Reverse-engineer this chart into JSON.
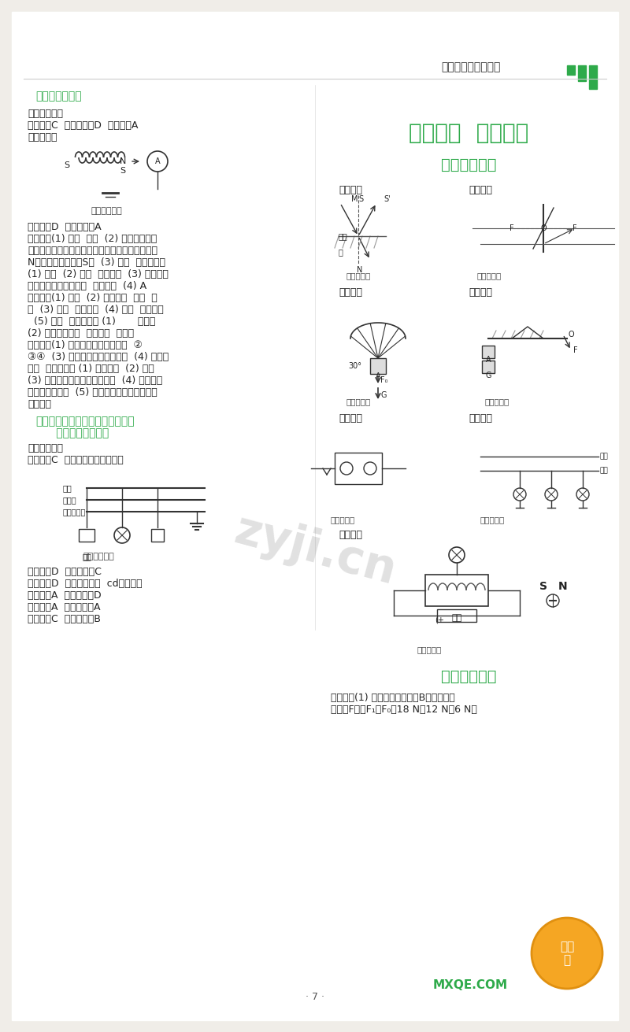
{
  "bg_color": "#f5f5f0",
  "page_bg": "#ffffff",
  "green_color": "#2eaa4a",
  "dark_text": "#222222",
  "gray_text": "#555555",
  "title_main": "第二阶段  专题复习",
  "header_text": "参考答案和部分解析",
  "section18_title": "（十八）电与磁",
  "section19_title": "（十九）生活用电、信息的传输、",
  "section19_title2": "能源与可持续发展",
  "subsection1": "一、作图专题",
  "subsection2": "二、计算专题",
  "watermark": "zyji.cn"
}
